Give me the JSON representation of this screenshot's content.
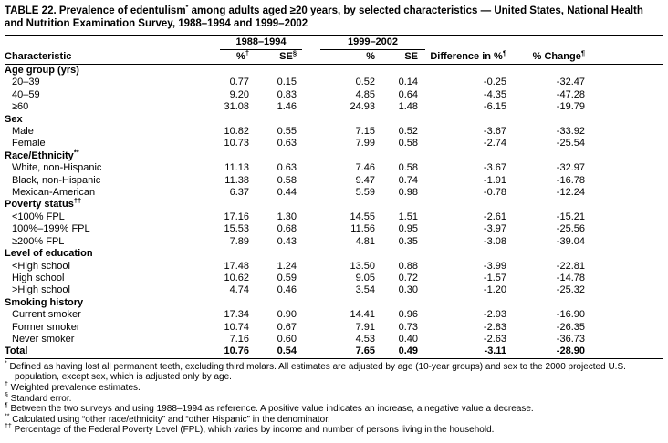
{
  "title": {
    "before_sup": "TABLE 22. Prevalence of edentulism",
    "sup": "*",
    "after_sup": " among adults aged ≥20 years, by selected characteristics — United States, National Health and Nutrition Examination Survey, 1988–1994 and 1999–2002"
  },
  "table": {
    "groups": [
      {
        "label": "1988–1994"
      },
      {
        "label": "1999–2002"
      }
    ],
    "columns": [
      {
        "label": "Characteristic",
        "sup": ""
      },
      {
        "label": "%",
        "sup": "†"
      },
      {
        "label": "SE",
        "sup": "§"
      },
      {
        "label": "%",
        "sup": ""
      },
      {
        "label": "SE",
        "sup": ""
      },
      {
        "label": "Difference in %",
        "sup": "¶"
      },
      {
        "label": "% Change",
        "sup": "¶"
      }
    ],
    "rows": [
      {
        "type": "section",
        "label": "Age group (yrs)",
        "sup": ""
      },
      {
        "type": "data",
        "label": "20–39",
        "values": [
          "0.77",
          "0.15",
          "0.52",
          "0.14",
          "-0.25",
          "-32.47"
        ]
      },
      {
        "type": "data",
        "label": "40–59",
        "values": [
          "9.20",
          "0.83",
          "4.85",
          "0.64",
          "-4.35",
          "-47.28"
        ]
      },
      {
        "type": "data",
        "label": "≥60",
        "values": [
          "31.08",
          "1.46",
          "24.93",
          "1.48",
          "-6.15",
          "-19.79"
        ]
      },
      {
        "type": "section",
        "label": "Sex",
        "sup": ""
      },
      {
        "type": "data",
        "label": "Male",
        "values": [
          "10.82",
          "0.55",
          "7.15",
          "0.52",
          "-3.67",
          "-33.92"
        ]
      },
      {
        "type": "data",
        "label": "Female",
        "values": [
          "10.73",
          "0.63",
          "7.99",
          "0.58",
          "-2.74",
          "-25.54"
        ]
      },
      {
        "type": "section",
        "label": "Race/Ethnicity",
        "sup": "**"
      },
      {
        "type": "data",
        "label": "White, non-Hispanic",
        "values": [
          "11.13",
          "0.63",
          "7.46",
          "0.58",
          "-3.67",
          "-32.97"
        ]
      },
      {
        "type": "data",
        "label": "Black, non-Hispanic",
        "values": [
          "11.38",
          "0.58",
          "9.47",
          "0.74",
          "-1.91",
          "-16.78"
        ]
      },
      {
        "type": "data",
        "label": "Mexican-American",
        "values": [
          "6.37",
          "0.44",
          "5.59",
          "0.98",
          "-0.78",
          "-12.24"
        ]
      },
      {
        "type": "section",
        "label": "Poverty status",
        "sup": "††"
      },
      {
        "type": "data",
        "label": "<100% FPL",
        "values": [
          "17.16",
          "1.30",
          "14.55",
          "1.51",
          "-2.61",
          "-15.21"
        ]
      },
      {
        "type": "data",
        "label": "100%–199% FPL",
        "values": [
          "15.53",
          "0.68",
          "11.56",
          "0.95",
          "-3.97",
          "-25.56"
        ]
      },
      {
        "type": "data",
        "label": "≥200% FPL",
        "values": [
          "7.89",
          "0.43",
          "4.81",
          "0.35",
          "-3.08",
          "-39.04"
        ]
      },
      {
        "type": "section",
        "label": "Level of education",
        "sup": ""
      },
      {
        "type": "data",
        "label": "<High school",
        "values": [
          "17.48",
          "1.24",
          "13.50",
          "0.88",
          "-3.99",
          "-22.81"
        ]
      },
      {
        "type": "data",
        "label": "High school",
        "values": [
          "10.62",
          "0.59",
          "9.05",
          "0.72",
          "-1.57",
          "-14.78"
        ]
      },
      {
        "type": "data",
        "label": ">High school",
        "values": [
          "4.74",
          "0.46",
          "3.54",
          "0.30",
          "-1.20",
          "-25.32"
        ]
      },
      {
        "type": "section",
        "label": "Smoking history",
        "sup": ""
      },
      {
        "type": "data",
        "label": "Current smoker",
        "values": [
          "17.34",
          "0.90",
          "14.41",
          "0.96",
          "-2.93",
          "-16.90"
        ]
      },
      {
        "type": "data",
        "label": "Former smoker",
        "values": [
          "10.74",
          "0.67",
          "7.91",
          "0.73",
          "-2.83",
          "-26.35"
        ]
      },
      {
        "type": "data",
        "label": "Never smoker",
        "values": [
          "7.16",
          "0.60",
          "4.53",
          "0.40",
          "-2.63",
          "-36.73"
        ]
      },
      {
        "type": "total",
        "label": "Total",
        "values": [
          "10.76",
          "0.54",
          "7.65",
          "0.49",
          "-3.11",
          "-28.90"
        ]
      }
    ]
  },
  "footnotes": [
    {
      "marker": "*",
      "text": "Defined as having lost all permanent teeth, excluding third molars. All estimates are adjusted by age (10-year groups) and sex to the 2000 projected U.S. population, except sex, which is adjusted only by age."
    },
    {
      "marker": "†",
      "text": "Weighted prevalence estimates."
    },
    {
      "marker": "§",
      "text": "Standard error."
    },
    {
      "marker": "¶",
      "text": "Between the two surveys and using 1988–1994 as reference. A positive value indicates an increase, a negative value a decrease."
    },
    {
      "marker": "**",
      "text": "Calculated using “other race/ethnicity” and “other Hispanic” in the denominator."
    },
    {
      "marker": "††",
      "text": "Percentage of the Federal Poverty Level (FPL), which varies by income and number of persons living in the household."
    }
  ]
}
